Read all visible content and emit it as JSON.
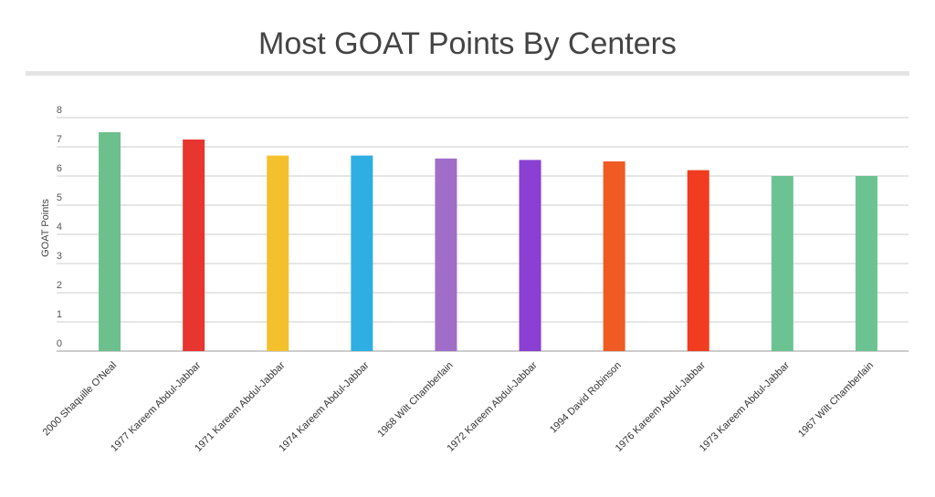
{
  "chart_data": {
    "type": "bar",
    "title": "Most GOAT Points By Centers",
    "y_label": "GOAT Points",
    "categories": [
      "2000 Shaquille O'Neal",
      "1977 Kareem Abdul-Jabbar",
      "1971 Kareem Abdul-Jabbar",
      "1974 Kareem Abdul-Jabbar",
      "1968 Wilt Chamberlain",
      "1972 Kareem Abdul-Jabbar",
      "1994 David Robinson",
      "1976 Kareem Abdul-Jabbar",
      "1973 Kareem Abdul-Jabbar",
      "1967 Wilt Chamberlain"
    ],
    "values": [
      7.5,
      7.25,
      6.7,
      6.7,
      6.6,
      6.55,
      6.5,
      6.2,
      6.0,
      6.0
    ],
    "colors": [
      "#6cc08e",
      "#e8352f",
      "#f5c02e",
      "#2faee3",
      "#a06ec8",
      "#8a40d2",
      "#f05a23",
      "#f03c20",
      "#6cc392",
      "#6cc392"
    ],
    "ylim": [
      0,
      8
    ],
    "yticks": [
      0,
      1,
      2,
      3,
      4,
      5,
      6,
      7,
      8
    ],
    "grid": true
  }
}
